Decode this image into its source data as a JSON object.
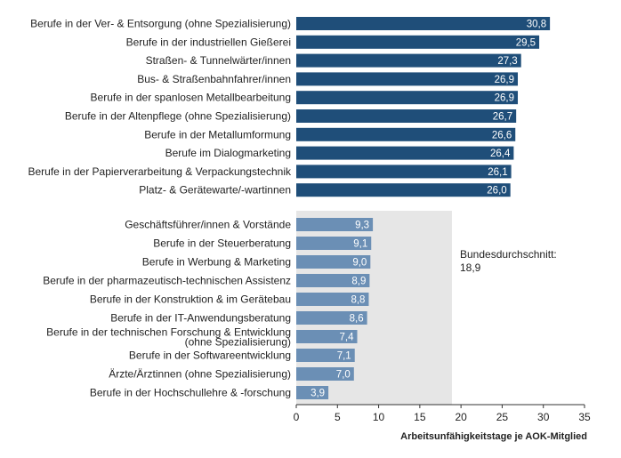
{
  "chart_data": {
    "type": "bar",
    "orientation": "horizontal",
    "xlabel": "Arbeitsunfähigkeitstage je AOK-Mitglied",
    "xlim": [
      0,
      35
    ],
    "xticks": [
      0,
      5,
      10,
      15,
      20,
      25,
      30,
      35
    ],
    "grid": false,
    "reference": {
      "label_line1": "Bundesdurchschnitt:",
      "label_line2": "18,9",
      "value": 18.9
    },
    "colors": {
      "top_group": "#1f4e79",
      "bottom_group": "#6b8fb5",
      "shade": "#e6e6e6",
      "value_label": "#ffffff",
      "text": "#222222"
    },
    "groups": [
      {
        "categories": [
          [
            "Berufe in der Ver- & Entsorgung (ohne Spezialisierung)"
          ],
          [
            "Berufe in der industriellen Gießerei"
          ],
          [
            "Straßen- & Tunnelwärter/innen"
          ],
          [
            "Bus- & Straßenbahnfahrer/innen"
          ],
          [
            "Berufe in der spanlosen Metallbearbeitung"
          ],
          [
            "Berufe in der Altenpflege (ohne Spezialisierung)"
          ],
          [
            "Berufe in der Metallumformung"
          ],
          [
            "Berufe im Dialogmarketing"
          ],
          [
            "Berufe in der Papierverarbeitung & Verpackungstechnik"
          ],
          [
            "Platz- & Gerätewarte/-wartinnen"
          ]
        ],
        "values": [
          30.8,
          29.5,
          27.3,
          26.9,
          26.9,
          26.7,
          26.6,
          26.4,
          26.1,
          26.0
        ],
        "value_labels": [
          "30,8",
          "29,5",
          "27,3",
          "26,9",
          "26,9",
          "26,7",
          "26,6",
          "26,4",
          "26,1",
          "26,0"
        ]
      },
      {
        "categories": [
          [
            "Geschäftsführer/innen & Vorstände"
          ],
          [
            "Berufe in der Steuerberatung"
          ],
          [
            "Berufe in Werbung & Marketing"
          ],
          [
            "Berufe in der pharmazeutisch-technischen Assistenz"
          ],
          [
            "Berufe in der Konstruktion & im Gerätebau"
          ],
          [
            "Berufe in der IT-Anwendungsberatung"
          ],
          [
            "Berufe in der technischen Forschung & Entwicklung",
            "(ohne Spezialisierung)"
          ],
          [
            "Berufe in der Softwareentwicklung"
          ],
          [
            "Ärzte/Ärztinnen (ohne Spezialisierung)"
          ],
          [
            "Berufe in der Hochschullehre & -forschung"
          ]
        ],
        "values": [
          9.3,
          9.1,
          9.0,
          8.9,
          8.8,
          8.6,
          7.4,
          7.1,
          7.0,
          3.9
        ],
        "value_labels": [
          "9,3",
          "9,1",
          "9,0",
          "8,9",
          "8,8",
          "8,6",
          "7,4",
          "7,1",
          "7,0",
          "3,9"
        ]
      }
    ]
  }
}
